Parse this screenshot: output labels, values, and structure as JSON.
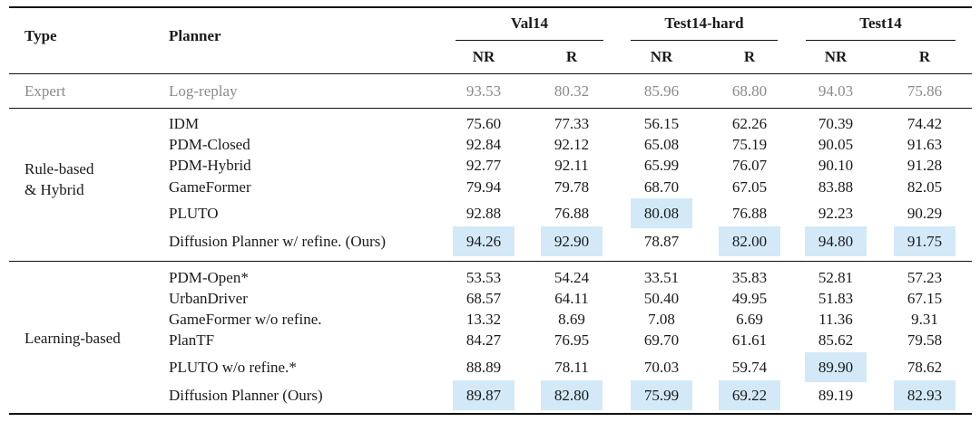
{
  "header": {
    "type": "Type",
    "planner": "Planner",
    "groups": [
      "Val14",
      "Test14-hard",
      "Test14"
    ],
    "sub": [
      "NR",
      "R",
      "NR",
      "R",
      "NR",
      "R"
    ]
  },
  "expert": {
    "type": "Expert",
    "planner": "Log-replay",
    "values": [
      "93.53",
      "80.32",
      "85.96",
      "68.80",
      "94.03",
      "75.86"
    ]
  },
  "sections": [
    {
      "type_lines": [
        "Rule-based",
        "& Hybrid"
      ],
      "rows": [
        {
          "planner": "IDM",
          "values": [
            "75.60",
            "77.33",
            "56.15",
            "62.26",
            "70.39",
            "74.42"
          ],
          "highlight": []
        },
        {
          "planner": "PDM-Closed",
          "values": [
            "92.84",
            "92.12",
            "65.08",
            "75.19",
            "90.05",
            "91.63"
          ],
          "highlight": []
        },
        {
          "planner": "PDM-Hybrid",
          "values": [
            "92.77",
            "92.11",
            "65.99",
            "76.07",
            "90.10",
            "91.28"
          ],
          "highlight": []
        },
        {
          "planner": "GameFormer",
          "values": [
            "79.94",
            "79.78",
            "68.70",
            "67.05",
            "83.88",
            "82.05"
          ],
          "highlight": []
        },
        {
          "planner": "PLUTO",
          "values": [
            "92.88",
            "76.88",
            "80.08",
            "76.88",
            "92.23",
            "90.29"
          ],
          "highlight": [
            2
          ]
        },
        {
          "planner": "Diffusion Planner w/ refine. (Ours)",
          "values": [
            "94.26",
            "92.90",
            "78.87",
            "82.00",
            "94.80",
            "91.75"
          ],
          "highlight": [
            0,
            1,
            3,
            4,
            5
          ]
        }
      ]
    },
    {
      "type_lines": [
        "Learning-based"
      ],
      "rows": [
        {
          "planner": "PDM-Open*",
          "values": [
            "53.53",
            "54.24",
            "33.51",
            "35.83",
            "52.81",
            "57.23"
          ],
          "highlight": []
        },
        {
          "planner": "UrbanDriver",
          "values": [
            "68.57",
            "64.11",
            "50.40",
            "49.95",
            "51.83",
            "67.15"
          ],
          "highlight": []
        },
        {
          "planner": "GameFormer w/o refine.",
          "values": [
            "13.32",
            "8.69",
            "7.08",
            "6.69",
            "11.36",
            "9.31"
          ],
          "highlight": []
        },
        {
          "planner": "PlanTF",
          "values": [
            "84.27",
            "76.95",
            "69.70",
            "61.61",
            "85.62",
            "79.58"
          ],
          "highlight": []
        },
        {
          "planner": "PLUTO w/o refine.*",
          "values": [
            "88.89",
            "78.11",
            "70.03",
            "59.74",
            "89.90",
            "78.62"
          ],
          "highlight": [
            4
          ]
        },
        {
          "planner": "Diffusion Planner (Ours)",
          "values": [
            "89.87",
            "82.80",
            "75.99",
            "69.22",
            "89.19",
            "82.93"
          ],
          "highlight": [
            0,
            1,
            2,
            3,
            5
          ]
        }
      ]
    }
  ],
  "colors": {
    "highlight": "#d3e9f7",
    "expert_text": "#8a8a8a"
  }
}
